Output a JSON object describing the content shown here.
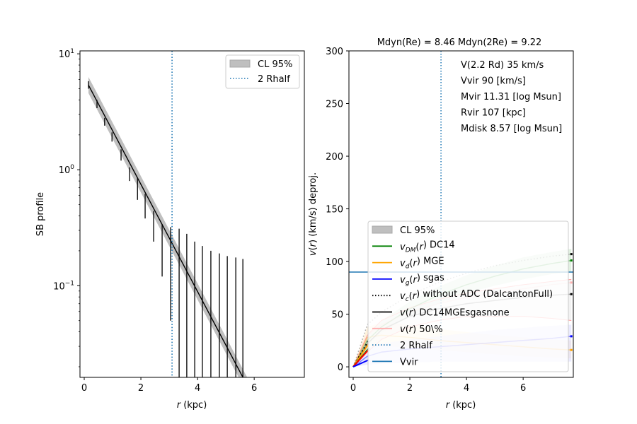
{
  "chart_data": [
    {
      "type": "line",
      "panel": "left",
      "title": "",
      "xlabel": "r (kpc)",
      "ylabel": "SB profile",
      "yscale": "log",
      "xlim": [
        -0.15,
        7.77
      ],
      "ylim": [
        0.0162,
        10.6
      ],
      "xticks": [
        0,
        2,
        4,
        6
      ],
      "xtick_labels": [
        "0",
        "2",
        "4",
        "6"
      ],
      "yticks": [
        10,
        1,
        0.1
      ],
      "ytick_labels": [
        {
          "base": "10",
          "exp": "1"
        },
        {
          "base": "10",
          "exp": "0"
        },
        {
          "base": "10",
          "exp": "−1"
        }
      ],
      "legend": {
        "placement": "top-right",
        "entries": [
          {
            "label": "CL 95%",
            "kind": "patch",
            "color": "#bfbfbf"
          },
          {
            "label": "2 Rhalf",
            "kind": "dotted",
            "color": "#1f77b4"
          }
        ]
      },
      "vline": {
        "x": 3.1,
        "label": "2 Rhalf",
        "color": "#1f77b4"
      },
      "model": {
        "x": [
          0.15,
          5.6
        ],
        "log10_y": [
          0.73,
          -1.79
        ],
        "band_log10_halfwidth": 0.07,
        "color": "#000000",
        "band_color": "#bfbfbf"
      },
      "data_points": {
        "x": [
          0.15,
          0.45,
          0.72,
          0.98,
          1.3,
          1.6,
          1.88,
          2.15,
          2.45,
          2.75,
          3.05,
          3.35,
          3.62,
          3.9,
          4.17,
          4.47,
          4.77,
          5.05,
          5.35,
          5.6
        ],
        "ylow": [
          5.0,
          3.4,
          2.4,
          1.75,
          1.2,
          0.8,
          0.55,
          0.38,
          0.24,
          0.12,
          0.05,
          0.001,
          0.001,
          0.001,
          0.001,
          0.001,
          0.001,
          0.001,
          0.001,
          0.001
        ],
        "yhigh": [
          5.8,
          4.0,
          2.8,
          2.1,
          1.5,
          1.05,
          0.85,
          0.62,
          0.44,
          0.34,
          0.32,
          0.31,
          0.28,
          0.24,
          0.22,
          0.2,
          0.19,
          0.18,
          0.175,
          0.17
        ]
      }
    },
    {
      "type": "line",
      "panel": "right",
      "title": "Mdyn(Re) = 8.46  Mdyn(2Re) = 9.22",
      "xlabel": "r (kpc)",
      "ylabel": "v(r) (km/s) deproj.",
      "xlim": [
        -0.15,
        7.77
      ],
      "ylim": [
        -10,
        300
      ],
      "xticks": [
        0,
        2,
        4,
        6
      ],
      "xtick_labels": [
        "0",
        "2",
        "4",
        "6"
      ],
      "yticks": [
        0,
        50,
        100,
        150,
        200,
        250,
        300
      ],
      "ytick_labels": [
        "0",
        "50",
        "100",
        "150",
        "200",
        "250",
        "300"
      ],
      "annotations": [
        "V(2.2 Rd) 35 km/s",
        "Vvir 90 [km/s]",
        "Mvir 11.31 [log Msun]",
        "Rvir 107 [kpc]",
        "Mdisk 8.57 [log Msun]"
      ],
      "vline": {
        "x": 3.1,
        "label": "2 Rhalf",
        "color": "#1f77b4"
      },
      "hline": {
        "y": 90,
        "label": "Vvir",
        "color": "#1f77b4"
      },
      "legend": {
        "placement": "lower-center",
        "entries": [
          {
            "label": "CL 95%",
            "kind": "patch",
            "color": "#bfbfbf"
          },
          {
            "label_main": "v",
            "label_sub": "DM",
            "label_rest": "(r) DC14",
            "kind": "solid",
            "color": "#008000"
          },
          {
            "label_main": "v",
            "label_sub": "d",
            "label_rest": "(r) MGE",
            "kind": "solid",
            "color": "#ffa500"
          },
          {
            "label_main": "v",
            "label_sub": "g",
            "label_rest": "(r) sgas",
            "kind": "solid",
            "color": "#0000ff"
          },
          {
            "label_main": "v",
            "label_sub": "c",
            "label_rest": "(r) without ADC (DalcantonFull)",
            "kind": "dotted",
            "color": "#000000"
          },
          {
            "label_main": "v",
            "label_sub": "",
            "label_rest": "(r) DC14MGEsgasnone",
            "kind": "solid",
            "color": "#000000"
          },
          {
            "label_main": "v",
            "label_sub": "",
            "label_rest": "(r) 50\\%",
            "kind": "solid",
            "color": "#ffb0b0"
          },
          {
            "label": "2 Rhalf",
            "kind": "dotted",
            "color": "#1f77b4"
          },
          {
            "label": "Vvir",
            "kind": "solid",
            "color": "#1f77b4"
          }
        ]
      },
      "series": [
        {
          "name": "vDM(r) DC14",
          "color": "#008000",
          "band_color": "#c8e6c8",
          "x": [
            0,
            0.5,
            1,
            2,
            3,
            4,
            5,
            6,
            7,
            7.7
          ],
          "y": [
            0,
            25,
            38,
            55,
            68,
            78,
            86,
            93,
            98,
            101
          ],
          "lo": [
            0,
            20,
            32,
            48,
            60,
            70,
            77,
            83,
            88,
            90
          ],
          "hi": [
            0,
            30,
            44,
            62,
            76,
            87,
            96,
            104,
            109,
            112
          ]
        },
        {
          "name": "vd(r) MGE",
          "color": "#ffa500",
          "band_color": "#ffe8c0",
          "x": [
            0,
            0.5,
            1,
            2,
            3,
            4,
            5,
            6,
            7,
            7.7
          ],
          "y": [
            0,
            28,
            30,
            28,
            25,
            23,
            21,
            19,
            17,
            16
          ],
          "lo": [
            0,
            18,
            20,
            18,
            16,
            14,
            12,
            10,
            9,
            8
          ],
          "hi": [
            0,
            38,
            42,
            40,
            36,
            33,
            30,
            28,
            26,
            25
          ]
        },
        {
          "name": "vg(r) sgas",
          "color": "#0000ff",
          "band_color": "#d8d8ff",
          "x": [
            0,
            0.5,
            1,
            2,
            3,
            4,
            5,
            6,
            7,
            7.7
          ],
          "y": [
            0,
            10,
            14,
            17,
            19,
            21,
            23,
            25,
            27,
            29
          ],
          "lo": [
            0,
            2,
            3,
            4,
            5,
            5,
            5,
            5,
            5,
            5
          ],
          "hi": [
            0,
            18,
            22,
            26,
            29,
            32,
            35,
            37,
            39,
            40
          ]
        },
        {
          "name": "vc(r) without ADC (DalcantonFull)",
          "color": "#000000",
          "dotted": true,
          "x": [
            0,
            0.5,
            1,
            2,
            3,
            4,
            5,
            6,
            7,
            7.7
          ],
          "y": [
            0,
            40,
            52,
            68,
            80,
            89,
            96,
            101,
            105,
            107
          ]
        },
        {
          "name": "v(r) DC14MGEsgasnone",
          "color": "#000000",
          "band_color": "#e8e8e8",
          "x": [
            0,
            0.5,
            1,
            2,
            3,
            4,
            5,
            6,
            7,
            7.7
          ],
          "y": [
            0,
            22,
            35,
            48,
            55,
            60,
            63,
            66,
            68,
            69
          ],
          "lo": [
            0,
            14,
            26,
            38,
            44,
            48,
            48,
            48,
            46,
            44
          ],
          "hi": [
            0,
            30,
            44,
            56,
            64,
            70,
            74,
            78,
            81,
            83
          ]
        },
        {
          "name": "v(r) 50\\%",
          "color": "#ffb0b0",
          "x": [
            0,
            0.5,
            1,
            2,
            3,
            4,
            5,
            6,
            7,
            7.7
          ],
          "y": [
            0,
            30,
            40,
            52,
            60,
            66,
            70,
            74,
            78,
            80
          ]
        }
      ]
    }
  ]
}
